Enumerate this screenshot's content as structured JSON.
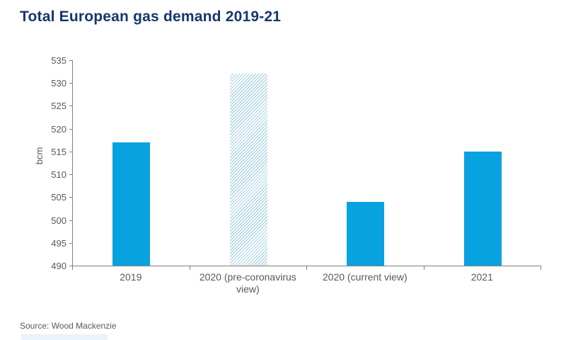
{
  "title": "Total European gas demand 2019-21",
  "source_note": "Source: Wood Mackenzie",
  "colors": {
    "title_text": "#17366d",
    "bar_fill": "#09a2e0",
    "hatch_stripe": "#aed5e6",
    "axis_line": "#7f7f7f",
    "tick_label": "#595959",
    "footer_strip": "#e9f3fa"
  },
  "chart_data": {
    "type": "bar",
    "title": "Total European gas demand 2019-21",
    "categories": [
      "2019",
      "2020 (pre-coronavirus view)",
      "2020 (current view)",
      "2021"
    ],
    "values": [
      517,
      532,
      504,
      515
    ],
    "bar_styles": [
      "solid",
      "hatched",
      "solid",
      "solid"
    ],
    "xlabel": "",
    "ylabel": "bcm",
    "ylim": [
      490,
      535
    ],
    "ytick_step": 5,
    "yticks": [
      490,
      495,
      500,
      505,
      510,
      515,
      520,
      525,
      530,
      535
    ],
    "grid": false,
    "legend": false
  }
}
